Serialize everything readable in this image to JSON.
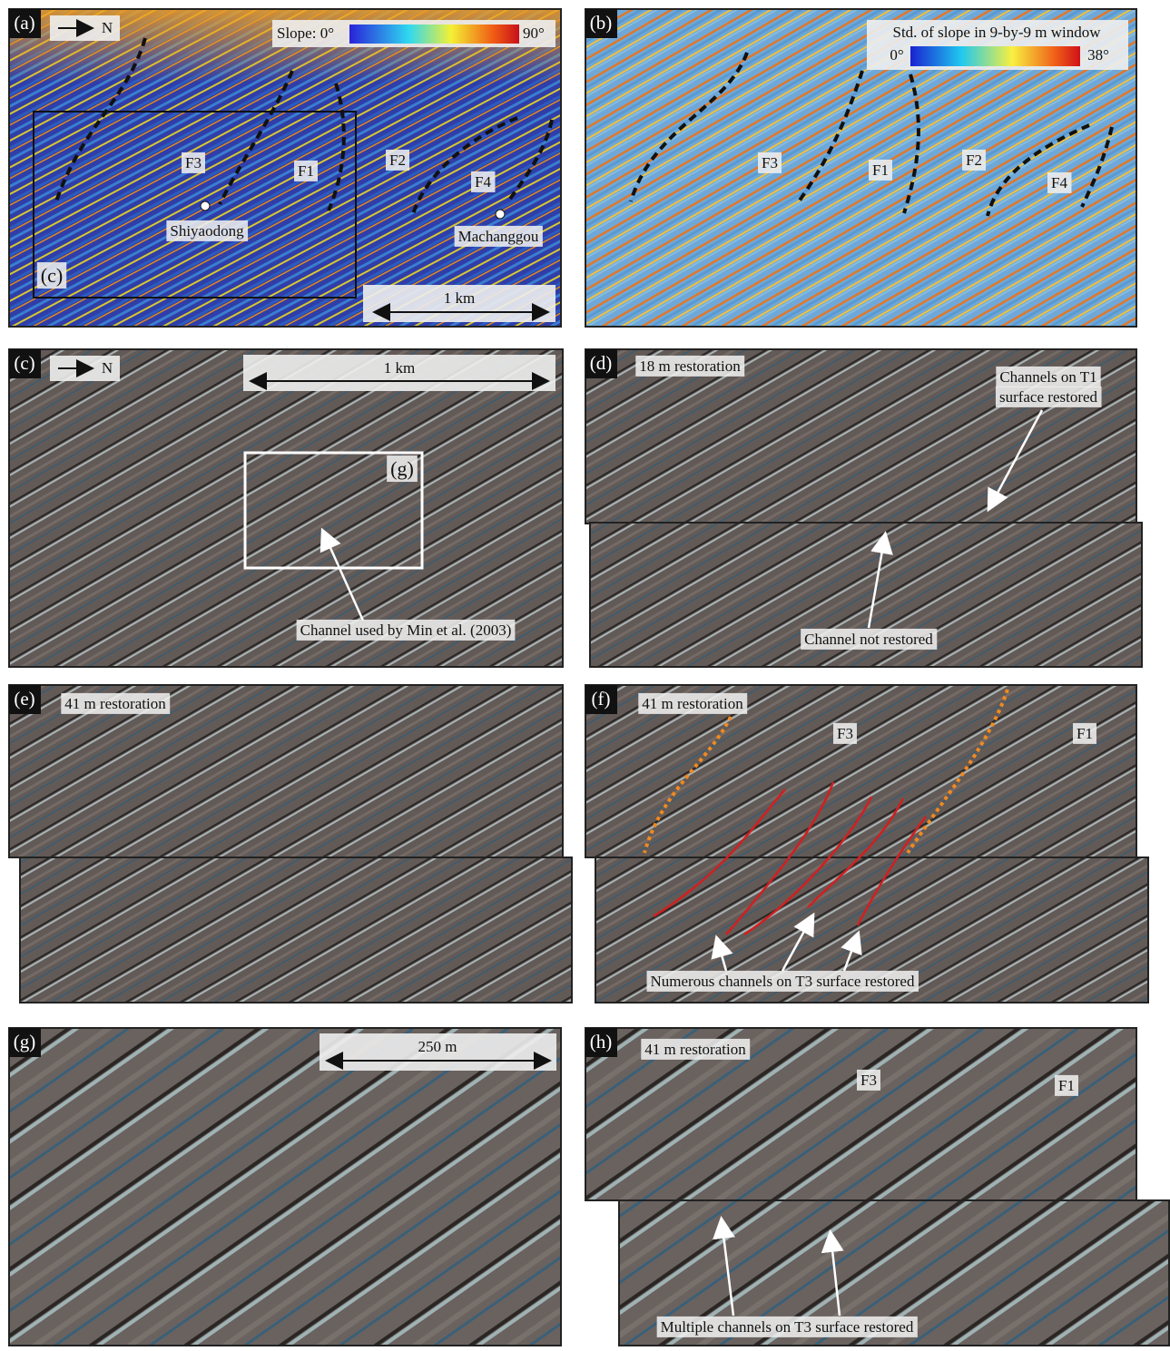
{
  "panels": {
    "a": {
      "letter": "(a)",
      "north": "N",
      "legend_label": "Slope: 0°",
      "legend_max": "90°",
      "faults": [
        "F3",
        "F1",
        "F2",
        "F4"
      ],
      "places": [
        "Shiyaodong",
        "Machanggou"
      ],
      "inset_label": "(c)",
      "scale": "1 km"
    },
    "b": {
      "letter": "(b)",
      "legend_title": "Std. of slope in 9-by-9 m window",
      "legend_min": "0°",
      "legend_max": "38°",
      "faults": [
        "F3",
        "F1",
        "F2",
        "F4"
      ]
    },
    "c": {
      "letter": "(c)",
      "north": "N",
      "scale": "1 km",
      "inset_label": "(g)",
      "annotation": "Channel used by Min et al. (2003)"
    },
    "d": {
      "letter": "(d)",
      "restoration": "18 m restoration",
      "annotation_top": [
        "Channels on T1",
        "surface restored"
      ],
      "annotation_bottom": "Channel not restored"
    },
    "e": {
      "letter": "(e)",
      "restoration": "41 m restoration"
    },
    "f": {
      "letter": "(f)",
      "restoration": "41 m restoration",
      "faults": [
        "F3",
        "F1"
      ],
      "annotation": "Numerous channels on T3 surface restored"
    },
    "g": {
      "letter": "(g)",
      "scale": "250 m"
    },
    "h": {
      "letter": "(h)",
      "restoration": "41 m restoration",
      "faults": [
        "F3",
        "F1"
      ],
      "annotation": "Multiple channels on T3 surface restored"
    }
  }
}
